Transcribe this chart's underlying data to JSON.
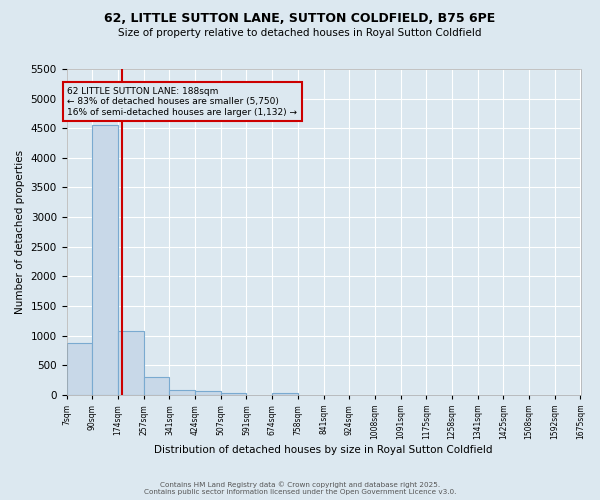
{
  "title": "62, LITTLE SUTTON LANE, SUTTON COLDFIELD, B75 6PE",
  "subtitle": "Size of property relative to detached houses in Royal Sutton Coldfield",
  "xlabel": "Distribution of detached houses by size in Royal Sutton Coldfield",
  "ylabel": "Number of detached properties",
  "property_size": 188,
  "annotation_line1": "62 LITTLE SUTTON LANE: 188sqm",
  "annotation_line2": "← 83% of detached houses are smaller (5,750)",
  "annotation_line3": "16% of semi-detached houses are larger (1,132) →",
  "bar_edges": [
    7,
    90,
    174,
    257,
    341,
    424,
    507,
    591,
    674,
    758,
    841,
    924,
    1008,
    1091,
    1175,
    1258,
    1341,
    1425,
    1508,
    1592,
    1675
  ],
  "bar_heights": [
    880,
    4550,
    1080,
    295,
    85,
    60,
    35,
    0,
    30,
    0,
    0,
    0,
    0,
    0,
    0,
    0,
    0,
    0,
    0,
    0
  ],
  "bar_color": "#c8d8e8",
  "bar_edge_color": "#7aaad0",
  "vline_color": "#cc0000",
  "annotation_box_color": "#cc0000",
  "background_color": "#dce8f0",
  "grid_color": "#ffffff",
  "ylim": [
    0,
    5500
  ],
  "yticks": [
    0,
    500,
    1000,
    1500,
    2000,
    2500,
    3000,
    3500,
    4000,
    4500,
    5000,
    5500
  ],
  "footer_line1": "Contains HM Land Registry data © Crown copyright and database right 2025.",
  "footer_line2": "Contains public sector information licensed under the Open Government Licence v3.0."
}
